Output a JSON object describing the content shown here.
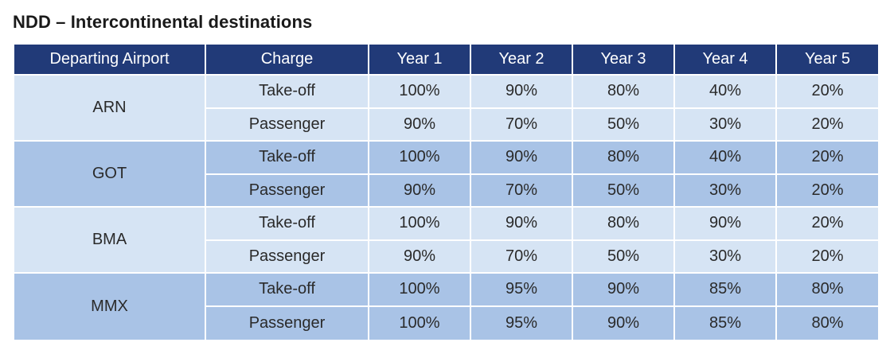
{
  "title": "NDD – Intercontinental destinations",
  "headers": [
    "Departing Airport",
    "Charge",
    "Year 1",
    "Year 2",
    "Year 3",
    "Year 4",
    "Year 5"
  ],
  "groups": [
    {
      "airport": "ARN",
      "rows": [
        {
          "charge": "Take-off",
          "values": [
            "100%",
            "90%",
            "80%",
            "40%",
            "20%"
          ]
        },
        {
          "charge": "Passenger",
          "values": [
            "90%",
            "70%",
            "50%",
            "30%",
            "20%"
          ]
        }
      ]
    },
    {
      "airport": "GOT",
      "rows": [
        {
          "charge": "Take-off",
          "values": [
            "100%",
            "90%",
            "80%",
            "40%",
            "20%"
          ]
        },
        {
          "charge": "Passenger",
          "values": [
            "90%",
            "70%",
            "50%",
            "30%",
            "20%"
          ]
        }
      ]
    },
    {
      "airport": "BMA",
      "rows": [
        {
          "charge": "Take-off",
          "values": [
            "100%",
            "90%",
            "80%",
            "90%",
            "20%"
          ]
        },
        {
          "charge": "Passenger",
          "values": [
            "90%",
            "70%",
            "50%",
            "30%",
            "20%"
          ]
        }
      ]
    },
    {
      "airport": "MMX",
      "rows": [
        {
          "charge": "Take-off",
          "values": [
            "100%",
            "95%",
            "90%",
            "85%",
            "80%"
          ]
        },
        {
          "charge": "Passenger",
          "values": [
            "100%",
            "95%",
            "90%",
            "85%",
            "80%"
          ]
        }
      ]
    }
  ],
  "colors": {
    "header_bg": "#213a78",
    "row_light": "#d6e4f4",
    "row_dark": "#a9c3e6"
  }
}
